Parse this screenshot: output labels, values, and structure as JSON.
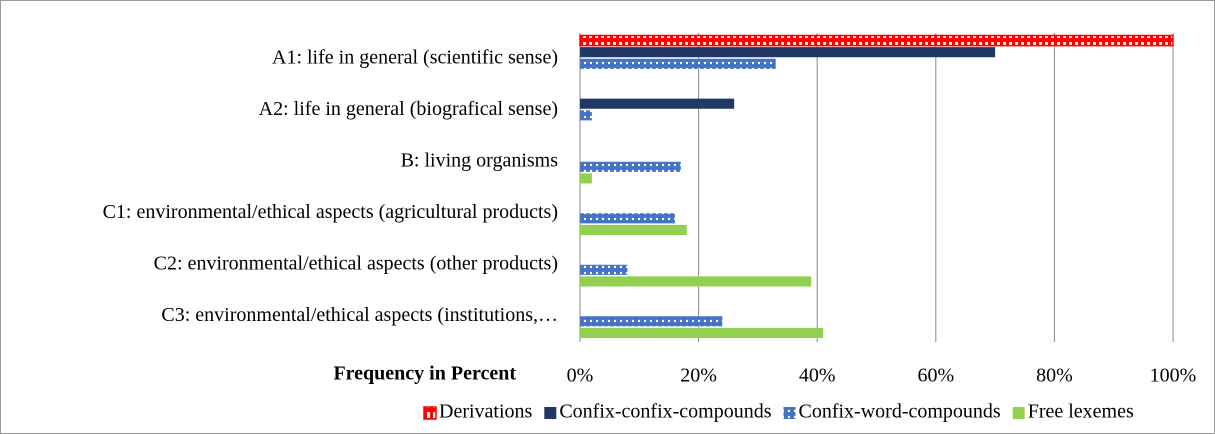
{
  "chart_data": {
    "type": "bar",
    "orientation": "horizontal",
    "xlabel": "Frequency in Percent",
    "categories": [
      "A1: life in general (scientific sense)",
      "A2: life in general (biografical sense)",
      "B: living organisms",
      "C1: environmental/ethical aspects (agricultural products)",
      "C2: environmental/ethical aspects (other products)",
      "C3: environmental/ethical aspects (institutions,…"
    ],
    "series": [
      {
        "name": "Derivations",
        "color": "#ff0000",
        "pattern": "stripes",
        "values": [
          100,
          null,
          null,
          null,
          null,
          null
        ]
      },
      {
        "name": "Confix-confix-compounds",
        "color": "#1f3864",
        "pattern": "solid",
        "values": [
          70,
          26,
          null,
          null,
          null,
          null
        ]
      },
      {
        "name": "Confix-word-compounds",
        "color": "#4472c4",
        "pattern": "dots",
        "values": [
          33,
          2,
          17,
          16,
          8,
          24
        ]
      },
      {
        "name": "Free lexemes",
        "color": "#92d050",
        "pattern": "solid",
        "values": [
          null,
          null,
          2,
          18,
          39,
          41
        ]
      }
    ],
    "xlim": [
      0,
      100
    ],
    "xticks": [
      {
        "value": 0,
        "label": "0%"
      },
      {
        "value": 20,
        "label": "20%"
      },
      {
        "value": 40,
        "label": "40%"
      },
      {
        "value": 60,
        "label": "60%"
      },
      {
        "value": 80,
        "label": "80%"
      },
      {
        "value": 100,
        "label": "100%"
      }
    ],
    "grid": true,
    "legend": "bottom"
  }
}
